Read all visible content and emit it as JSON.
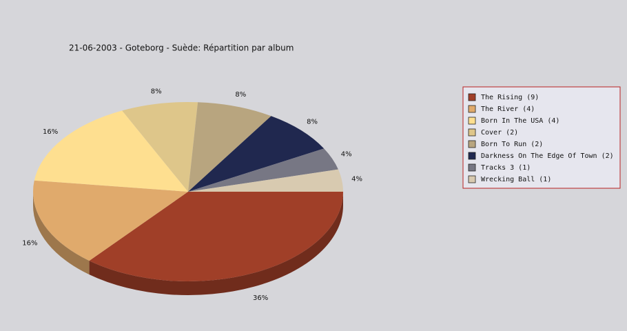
{
  "chart_data": {
    "type": "pie",
    "title": "21-06-2003 - Goteborg - Suède:  Répartition par album",
    "categories": [
      "The Rising (9)",
      "The River (4)",
      "Born In The USA (4)",
      "Cover (2)",
      "Born To Run (2)",
      "Darkness On The Edge Of Town (2)",
      "Tracks 3 (1)",
      "Wrecking Ball (1)"
    ],
    "values": [
      36,
      16,
      16,
      8,
      8,
      8,
      4,
      4
    ],
    "value_labels": [
      "36%",
      "16%",
      "16%",
      "8%",
      "8%",
      "8%",
      "4%",
      "4%"
    ],
    "colors": [
      "#a03f28",
      "#e0aa6c",
      "#fedf90",
      "#dec68a",
      "#b8a57f",
      "#20284f",
      "#777784",
      "#d8cab0"
    ],
    "legend": "right"
  }
}
